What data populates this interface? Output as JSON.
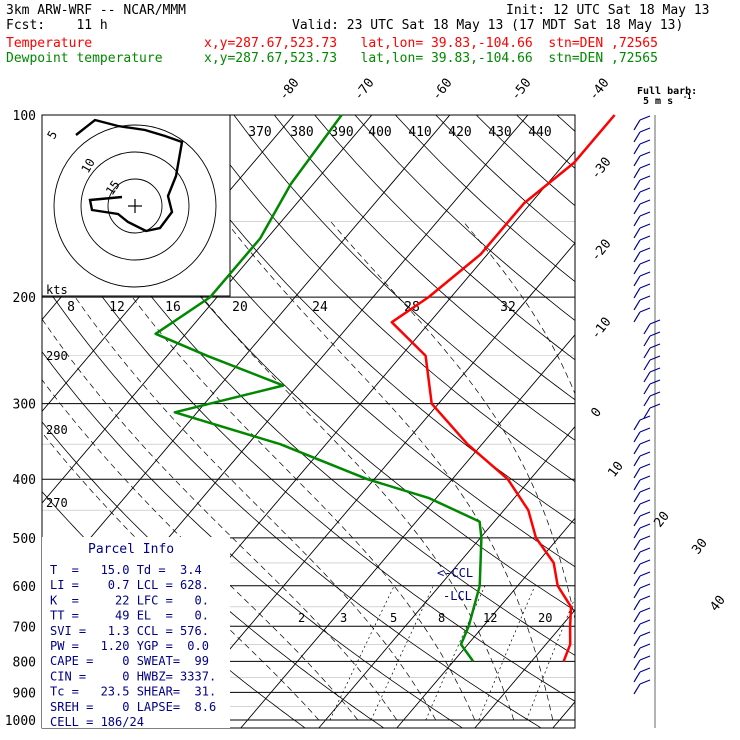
{
  "header": {
    "model": "3km ARW-WRF -- NCAR/MMM",
    "init": "Init: 12 UTC Sat 18 May 13",
    "fcst": "Fcst:    11 h",
    "valid": "Valid: 23 UTC Sat 18 May 13 (17 MDT Sat 18 May 13)",
    "temp_label": "Temperature",
    "temp_loc": "x,y=287.67,523.73   lat,lon= 39.83,-104.66  stn=DEN ,72565",
    "dew_label": "Dewpoint temperature",
    "dew_loc": "x,y=287.67,523.73   lat,lon= 39.83,-104.66  stn=DEN ,72565"
  },
  "colors": {
    "temperature": "#ff0000",
    "dewpoint": "#008800",
    "barbs": "#000088",
    "grid": "#000000"
  },
  "chart_data": {
    "type": "line",
    "pressure_ticks": [
      100,
      200,
      300,
      400,
      500,
      600,
      700,
      800,
      900,
      1000
    ],
    "isotherm_labels": [
      "-80",
      "-70",
      "-60",
      "-50",
      "-40",
      "-30",
      "-20",
      "-10",
      "0",
      "10",
      "20",
      "30",
      "40"
    ],
    "theta_e_labels": [
      "370",
      "380",
      "390",
      "400",
      "410",
      "420",
      "430",
      "440"
    ],
    "theta_labels": [
      "290",
      "280",
      "270"
    ],
    "mixing_ratio_labels": [
      "2",
      "3",
      "5",
      "8",
      "12",
      "20"
    ],
    "hodograph": {
      "speed_unit": "kts",
      "ring_labels": [
        "5",
        "10",
        "15"
      ],
      "speed_ticks": [
        "8",
        "12",
        "16",
        "20",
        "24",
        "28",
        "32"
      ]
    },
    "barb_key": {
      "title": "Full barb:",
      "value": "5 m s",
      "superscript": "-1"
    },
    "lcl_labels": [
      "<-CCL",
      "-LCL"
    ],
    "series": [
      {
        "name": "Temperature",
        "points": [
          [
            100,
            -38
          ],
          [
            120,
            -38
          ],
          [
            140,
            -40
          ],
          [
            170,
            -40
          ],
          [
            200,
            -42
          ],
          [
            220,
            -44
          ],
          [
            250,
            -36
          ],
          [
            300,
            -30
          ],
          [
            350,
            -21
          ],
          [
            400,
            -12
          ],
          [
            450,
            -6
          ],
          [
            500,
            -2
          ],
          [
            550,
            3
          ],
          [
            600,
            6
          ],
          [
            650,
            10
          ],
          [
            700,
            12
          ],
          [
            750,
            14
          ],
          [
            800,
            15
          ]
        ]
      },
      {
        "name": "Dewpoint temperature",
        "points": [
          [
            100,
            -73
          ],
          [
            130,
            -72
          ],
          [
            160,
            -70
          ],
          [
            200,
            -70
          ],
          [
            230,
            -73
          ],
          [
            250,
            -64
          ],
          [
            280,
            -51
          ],
          [
            310,
            -62
          ],
          [
            350,
            -45
          ],
          [
            400,
            -30
          ],
          [
            430,
            -20
          ],
          [
            470,
            -11
          ],
          [
            500,
            -9
          ],
          [
            600,
            -4
          ],
          [
            700,
            -1
          ],
          [
            750,
            0
          ],
          [
            800,
            3.4
          ]
        ]
      }
    ]
  },
  "parcel_info": {
    "title": "Parcel Info",
    "rows": [
      "T  =   15.0 Td =  3.4",
      "LI =    0.7 LCL = 628.",
      "K  =     22 LFC =   0.",
      "TT =     49 EL  =   0.",
      "SVI =   1.3 CCL = 576.",
      "PW =   1.20 YGP =  0.0",
      "CAPE =    0 SWEAT=  99",
      "CIN =     0 HWBZ= 3337.",
      "Tc =   23.5 SHEAR=  31.",
      "SREH =    0 LAPSE=  8.6",
      "CELL = 186/24"
    ]
  }
}
